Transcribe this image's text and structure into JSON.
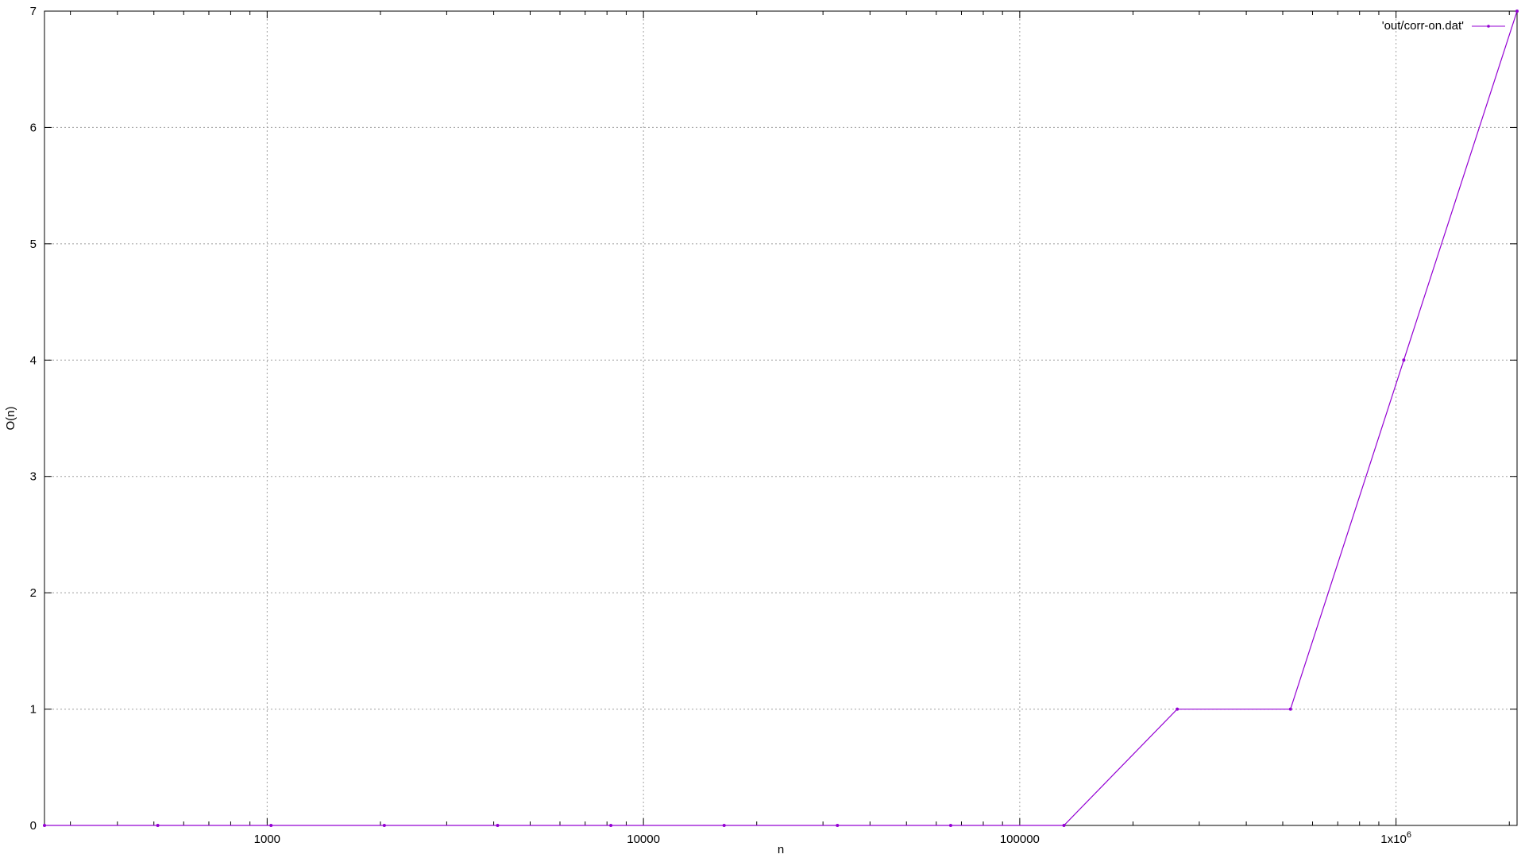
{
  "chart_data": {
    "type": "line",
    "x_scale": "log",
    "xlabel": "n",
    "ylabel": "O(n)",
    "xlim": [
      256,
      2097152
    ],
    "ylim": [
      0,
      7
    ],
    "grid": true,
    "legend_position": "top-right",
    "x_major_ticks": [
      {
        "value": 1000,
        "label": "1000"
      },
      {
        "value": 10000,
        "label": "10000"
      },
      {
        "value": 100000,
        "label": "100000"
      },
      {
        "value": 1000000,
        "label": "1x10",
        "exp": "6"
      }
    ],
    "y_ticks": [
      {
        "value": 0,
        "label": "0"
      },
      {
        "value": 1,
        "label": "1"
      },
      {
        "value": 2,
        "label": "2"
      },
      {
        "value": 3,
        "label": "3"
      },
      {
        "value": 4,
        "label": "4"
      },
      {
        "value": 5,
        "label": "5"
      },
      {
        "value": 6,
        "label": "6"
      },
      {
        "value": 7,
        "label": "7"
      }
    ],
    "series": [
      {
        "name": "'out/corr-on.dat'",
        "color": "#9400d3",
        "x": [
          256,
          512,
          1024,
          2048,
          4096,
          8192,
          16384,
          32768,
          65536,
          131072,
          262144,
          524288,
          1048576,
          2097152
        ],
        "y": [
          0,
          0,
          0,
          0,
          0,
          0,
          0,
          0,
          0,
          0,
          1,
          1,
          4,
          7
        ]
      }
    ]
  }
}
